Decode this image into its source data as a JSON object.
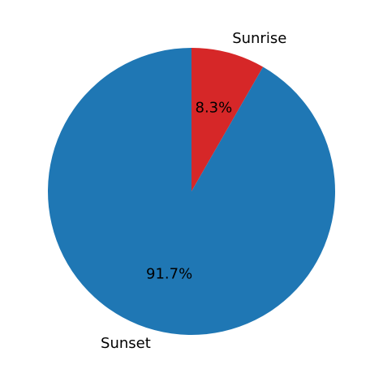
{
  "chart_data": {
    "type": "pie",
    "slices": [
      {
        "label": "Sunrise",
        "value": 8.3,
        "pct_label": "8.3%",
        "color": "#d62728"
      },
      {
        "label": "Sunset",
        "value": 91.7,
        "pct_label": "91.7%",
        "color": "#1f77b4"
      }
    ],
    "start_angle": "top (90°)",
    "direction": "clockwise",
    "legend": "none",
    "title": ""
  }
}
